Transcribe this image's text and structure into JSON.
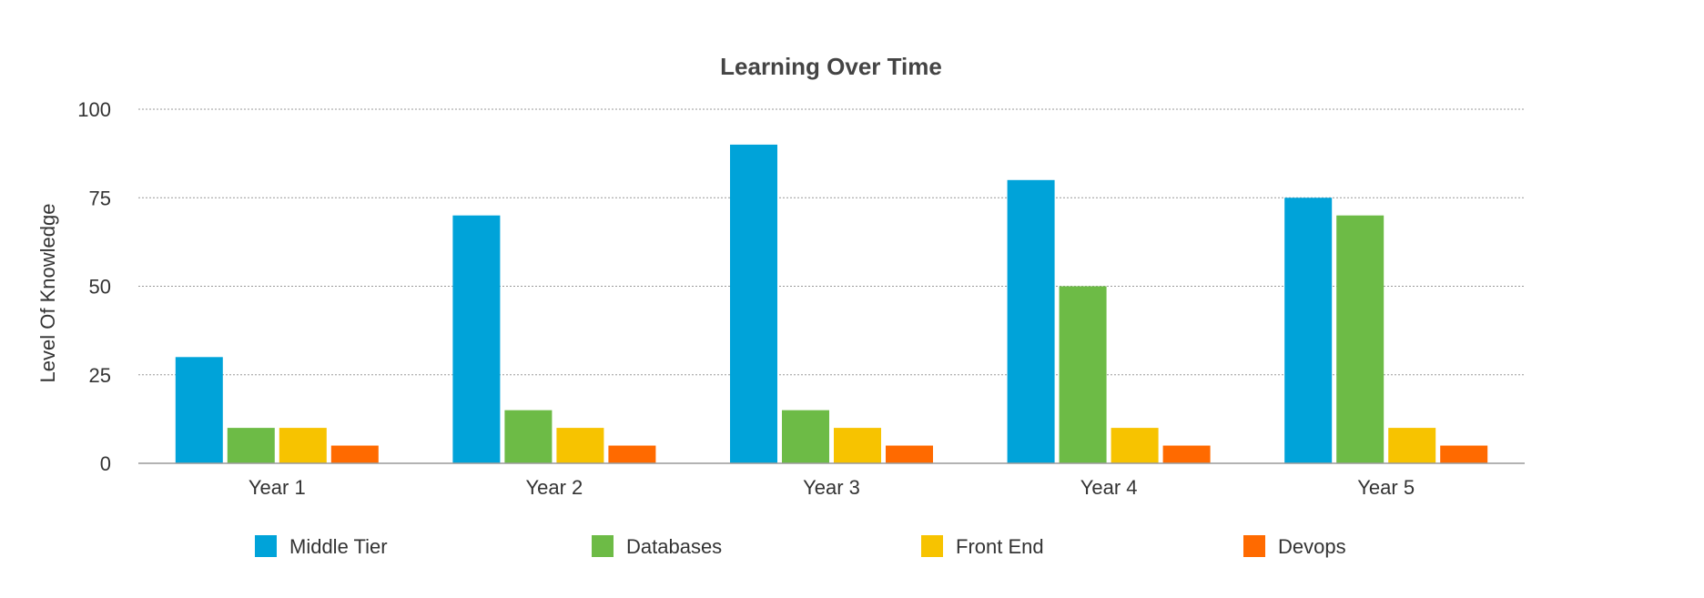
{
  "chart_data": {
    "type": "bar",
    "title": "Learning Over Time",
    "xlabel": "",
    "ylabel": "Level Of Knowledge",
    "categories": [
      "Year 1",
      "Year 2",
      "Year 3",
      "Year 4",
      "Year 5"
    ],
    "ylim": [
      0,
      100
    ],
    "yticks": [
      0,
      25,
      50,
      75,
      100
    ],
    "grid": true,
    "legend_position": "bottom",
    "series": [
      {
        "name": "Middle Tier",
        "color": "#00a3d9",
        "values": [
          30,
          70,
          90,
          80,
          75
        ]
      },
      {
        "name": "Databases",
        "color": "#6dbb46",
        "values": [
          10,
          15,
          15,
          50,
          70
        ]
      },
      {
        "name": "Front End",
        "color": "#f7c300",
        "values": [
          10,
          10,
          10,
          10,
          10
        ]
      },
      {
        "name": "Devops",
        "color": "#ff6a00",
        "values": [
          5,
          5,
          5,
          5,
          5
        ]
      }
    ]
  }
}
